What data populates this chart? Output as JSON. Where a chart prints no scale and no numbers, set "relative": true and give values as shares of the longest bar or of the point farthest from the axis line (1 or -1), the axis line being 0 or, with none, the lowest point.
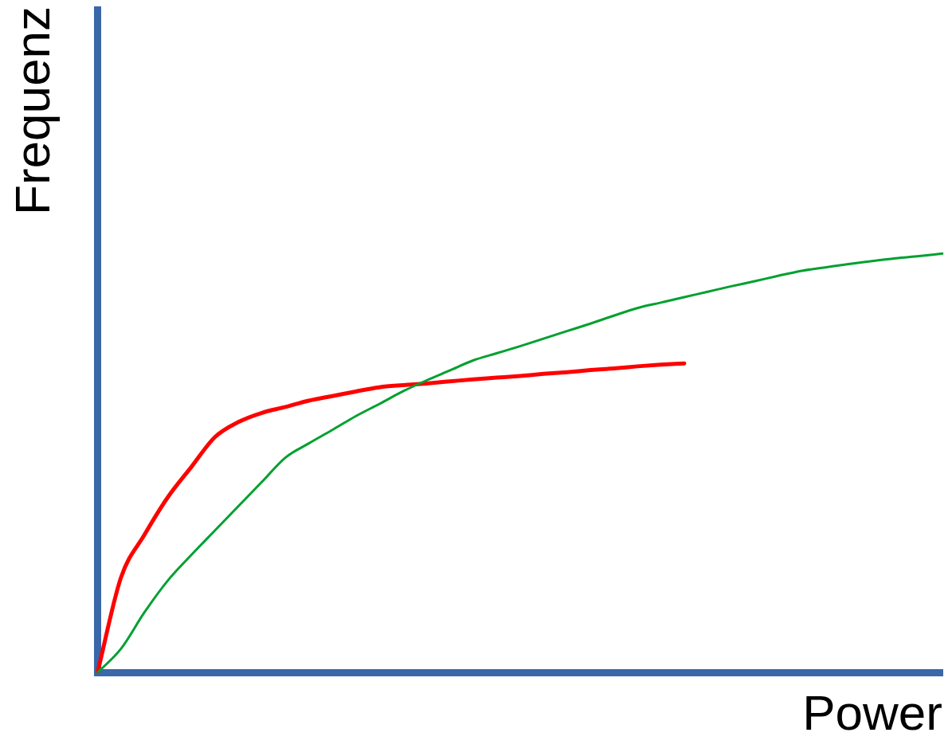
{
  "chart_data": {
    "type": "line",
    "relative": true,
    "xlabel": "Power",
    "ylabel": "Frequenz",
    "grid": false,
    "legend": false,
    "marker": "none",
    "line_style": "solid",
    "categories": [
      null,
      null,
      null,
      null,
      null,
      null,
      null,
      null,
      null,
      null,
      null,
      null,
      null,
      null,
      null,
      null,
      null,
      null,
      null,
      null,
      null,
      null,
      null,
      null,
      null,
      null,
      null,
      null,
      null,
      null,
      null,
      null,
      null,
      null,
      null,
      null,
      null
    ],
    "series": [
      {
        "color": "#00a030",
        "values": [
          0,
          0.057,
          0.144,
          0.22,
          0.281,
          0.339,
          0.397,
          0.455,
          0.513,
          0.547,
          0.579,
          0.612,
          0.641,
          0.671,
          0.697,
          0.721,
          0.745,
          0.762,
          0.779,
          0.797,
          0.815,
          0.833,
          0.852,
          0.87,
          0.883,
          0.896,
          0.909,
          0.922,
          0.934,
          0.947,
          0.959,
          0.967,
          0.975,
          0.982,
          0.989,
          0.994,
          1
        ]
      },
      {
        "color": "#ff0000",
        "values": [
          0,
          0.227,
          0.329,
          0.419,
          0.491,
          0.562,
          0.598,
          0.62,
          0.634,
          0.649,
          0.66,
          0.671,
          0.681,
          0.686,
          0.69,
          0.695,
          0.7,
          0.704,
          0.708,
          0.713,
          0.717,
          0.722,
          0.726,
          0.731,
          0.735,
          0.738,
          null,
          null,
          null,
          null,
          null,
          null,
          null,
          null,
          null,
          null,
          null
        ]
      }
    ]
  }
}
